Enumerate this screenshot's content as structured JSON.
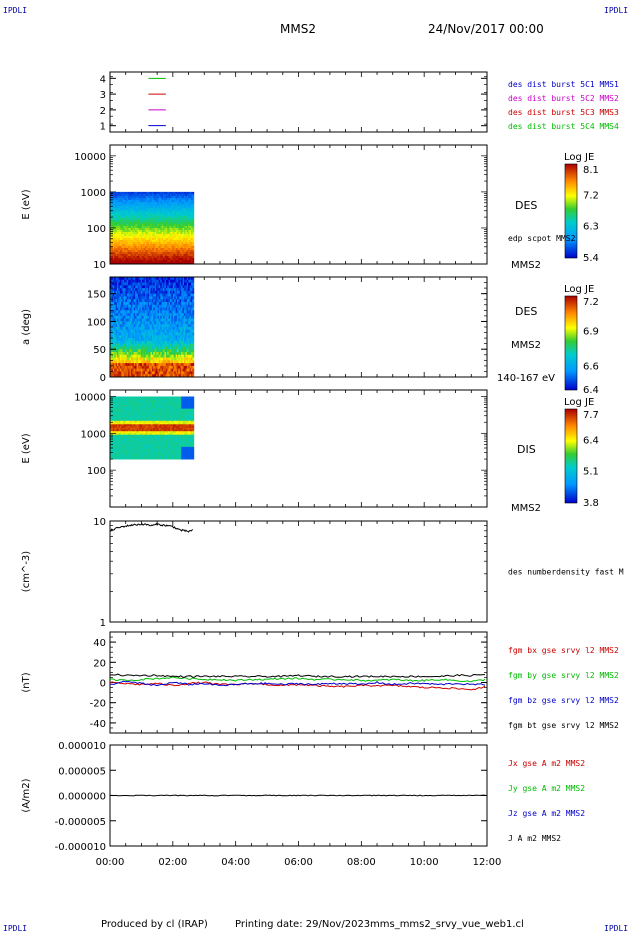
{
  "header": {
    "corner_tl": "IPDLI",
    "corner_tr": "IPDLI",
    "corner_bl": "IPDLI",
    "corner_br": "IPDLI",
    "spacecraft": "MMS2",
    "datetime": "24/Nov/2017 00:00"
  },
  "footer": {
    "produced": "Produced by cl (IRAP)",
    "printing_date": "Printing date: 29/Nov/2023",
    "filename": "mms_mms2_srvy_vue_web1.cl"
  },
  "colors": {
    "mms1": "#0000cc",
    "mms2": "#cc00cc",
    "mms3": "#cc0000",
    "mms4": "#00bb00"
  },
  "chart_data": [
    {
      "type": "line",
      "panel": "availability",
      "ylim": [
        0.6,
        4.4
      ],
      "y_ticks": [
        "1",
        "2",
        "3",
        "4"
      ],
      "series": [
        {
          "name": "des dist burst 5C1 MMS1",
          "color": "#0000cc",
          "y": 1,
          "x": [
            "01:00",
            "02:00"
          ]
        },
        {
          "name": "des dist burst 5C2 MMS2",
          "color": "#cc00cc",
          "y": 2,
          "x": [
            "01:00",
            "02:00"
          ]
        },
        {
          "name": "des dist burst 5C3 MMS3",
          "color": "#cc0000",
          "y": 3,
          "x": [
            "01:00",
            "02:00"
          ]
        },
        {
          "name": "des dist burst 5C4 MMS4",
          "color": "#00bb00",
          "y": 4,
          "x": [
            "01:00",
            "02:00"
          ]
        }
      ]
    },
    {
      "type": "heatmap",
      "panel": "des-energy",
      "ylabel": "E (eV)",
      "yscale": "log",
      "ylim": [
        10,
        20000
      ],
      "y_ticks": [
        "10",
        "100",
        "1000",
        "10000"
      ],
      "data_x_range": [
        "00:00",
        "02:40"
      ],
      "label": "DES",
      "side_labels": [
        "edp scpot MMS2",
        "MMS2"
      ],
      "colorbar": {
        "title": "Log JE",
        "ticks": [
          "8.1",
          "7.2",
          "6.3",
          "5.4"
        ],
        "range": [
          5.4,
          8.1
        ]
      }
    },
    {
      "type": "heatmap",
      "panel": "des-pitch-angle",
      "ylabel": "a (deg)",
      "ylim": [
        0,
        180
      ],
      "y_ticks": [
        "0",
        "50",
        "100",
        "150"
      ],
      "data_x_range": [
        "00:00",
        "02:40"
      ],
      "label": "DES",
      "side_labels": [
        "MMS2",
        "140-167 eV"
      ],
      "colorbar": {
        "title": "Log JE",
        "ticks": [
          "7.2",
          "6.9",
          "6.6",
          "6.4"
        ],
        "range": [
          6.4,
          7.2
        ]
      }
    },
    {
      "type": "heatmap",
      "panel": "dis-energy",
      "ylabel": "E (eV)",
      "yscale": "log",
      "ylim": [
        10,
        15000
      ],
      "y_ticks": [
        "100",
        "1000",
        "10000"
      ],
      "data_x_range": [
        "00:00",
        "02:40"
      ],
      "label": "DIS",
      "side_labels": [
        "MMS2"
      ],
      "colorbar": {
        "title": "Log JE",
        "ticks": [
          "7.7",
          "6.4",
          "5.1",
          "3.8"
        ],
        "range": [
          3.8,
          7.7
        ]
      }
    },
    {
      "type": "line",
      "panel": "density",
      "ylabel": "(cm^-3)",
      "yscale": "log",
      "ylim": [
        1,
        10
      ],
      "y_ticks": [
        "1",
        "10"
      ],
      "series": [
        {
          "name": "des numberdensity fast M",
          "color": "#000000",
          "x": [
            "00:00",
            "00:10",
            "00:20",
            "00:30",
            "00:40",
            "00:50",
            "01:00",
            "01:10",
            "01:20",
            "01:30",
            "01:40",
            "01:50",
            "02:00",
            "02:10",
            "02:20",
            "02:30",
            "02:40"
          ],
          "y": [
            8.0,
            8.4,
            8.7,
            8.9,
            9.1,
            9.2,
            9.3,
            9.2,
            9.0,
            9.3,
            9.1,
            9.0,
            8.8,
            8.3,
            8.0,
            7.9,
            8.1
          ]
        }
      ]
    },
    {
      "type": "line",
      "panel": "magnetic-field",
      "ylabel": "(nT)",
      "ylim": [
        -50,
        50
      ],
      "y_ticks": [
        "40",
        "20",
        "0",
        "-20",
        "-40"
      ],
      "x": [
        "00:00",
        "00:30",
        "01:00",
        "01:30",
        "02:00",
        "02:30",
        "03:00",
        "03:30",
        "04:00",
        "04:30",
        "05:00",
        "05:30",
        "06:00",
        "06:30",
        "07:00",
        "07:30",
        "08:00",
        "08:30",
        "09:00",
        "09:30",
        "10:00",
        "10:30",
        "11:00",
        "11:30",
        "12:00"
      ],
      "series": [
        {
          "name": "fgm bx gse srvy l2 MMS2",
          "color": "#cc0000",
          "y": [
            0,
            -1,
            -2,
            -1,
            -3,
            -1,
            0,
            -2,
            -2,
            -1,
            -2,
            -3,
            -2,
            -3,
            -4,
            -4,
            -3,
            -3,
            -3,
            -4,
            -5,
            -5,
            -6,
            -7,
            -4
          ]
        },
        {
          "name": "fgm by gse srvy l2 MMS2",
          "color": "#00bb00",
          "y": [
            3,
            2,
            3,
            4,
            5,
            4,
            3,
            3,
            2,
            3,
            3,
            4,
            4,
            3,
            3,
            3,
            2,
            2,
            3,
            2,
            2,
            3,
            2,
            1,
            3
          ]
        },
        {
          "name": "fgm bz gse srvy l2 MMS2",
          "color": "#0000cc",
          "y": [
            -2,
            1,
            -1,
            -3,
            0,
            -2,
            -1,
            -3,
            -2,
            -1,
            -1,
            -2,
            -1,
            -2,
            -1,
            -1,
            -2,
            0,
            -2,
            -1,
            -1,
            -2,
            -1,
            -2,
            -2
          ]
        },
        {
          "name": "fgm bt gse srvy l2 MMS2",
          "color": "#000000",
          "y": [
            8,
            7,
            7,
            7,
            6,
            6,
            6,
            6,
            6,
            6,
            6,
            6,
            7,
            6,
            6,
            6,
            6,
            6,
            6,
            6,
            6,
            6,
            7,
            7,
            8
          ]
        }
      ]
    },
    {
      "type": "line",
      "panel": "current-density",
      "ylabel": "(A/m2)",
      "ylim": [
        -1e-05,
        1e-05
      ],
      "y_ticks": [
        "0.000010",
        "0.000005",
        "0.000000",
        "-0.000005",
        "-0.000010"
      ],
      "x_ticks": [
        "00:00",
        "02:00",
        "04:00",
        "06:00",
        "08:00",
        "10:00",
        "12:00"
      ],
      "series": [
        {
          "name": "Jx gse A m2 MMS2",
          "color": "#cc0000",
          "y_const": 0
        },
        {
          "name": "Jy gse A m2 MMS2",
          "color": "#00bb00",
          "y_const": 0
        },
        {
          "name": "Jz gse A m2 MMS2",
          "color": "#0000cc",
          "y_const": 0
        },
        {
          "name": "J A m2 MMS2",
          "color": "#000000",
          "y_const": 0
        }
      ]
    }
  ]
}
